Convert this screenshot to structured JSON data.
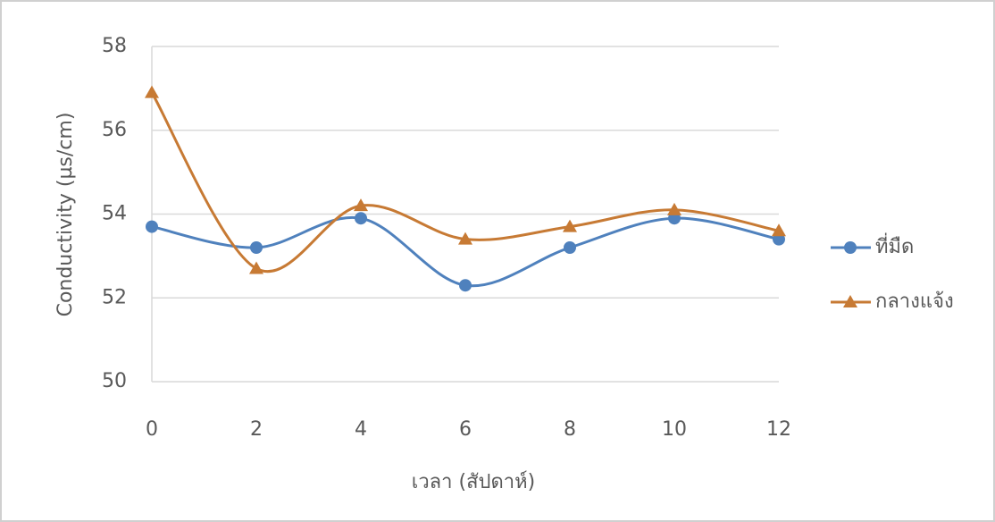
{
  "chart_data": {
    "type": "line",
    "x_label": "เวลา (สัปดาห์)",
    "y_label": "Conductivity (µs/cm)",
    "x": [
      0,
      2,
      4,
      6,
      8,
      10,
      12
    ],
    "series": [
      {
        "name": "ที่มืด",
        "color": "#4f81bd",
        "marker": "circle",
        "values": [
          53.7,
          53.2,
          53.9,
          52.3,
          53.2,
          53.9,
          53.4
        ]
      },
      {
        "name": "กลางแจ้ง",
        "color": "#c77a34",
        "marker": "triangle",
        "values": [
          56.9,
          52.7,
          54.2,
          53.4,
          53.7,
          54.1,
          53.6
        ]
      }
    ],
    "xlim": [
      0,
      12
    ],
    "xticks": [
      0,
      2,
      4,
      6,
      8,
      10,
      12
    ],
    "ylim": [
      50,
      58
    ],
    "yticks": [
      50,
      52,
      54,
      56,
      58
    ],
    "grid": true,
    "smooth": true,
    "legend": "right"
  }
}
